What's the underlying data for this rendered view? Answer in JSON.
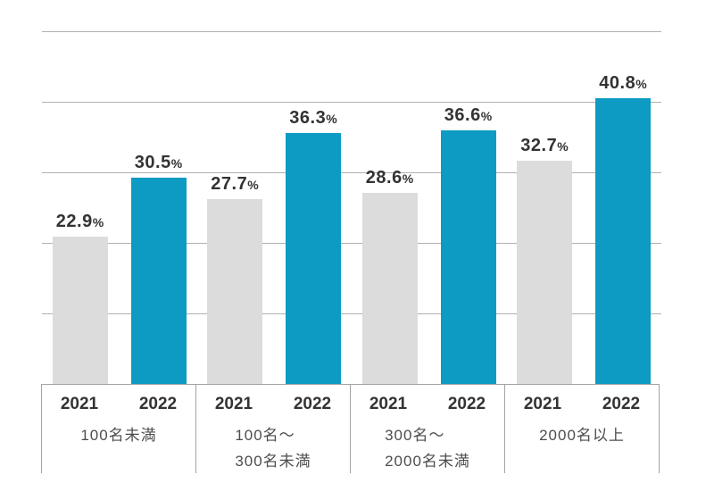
{
  "chart_data": {
    "type": "bar",
    "title": "",
    "categories": [
      {
        "lines": [
          "100名未満"
        ]
      },
      {
        "lines": [
          "100名～",
          "300名未満"
        ]
      },
      {
        "lines": [
          "300名～",
          "2000名未満"
        ]
      },
      {
        "lines": [
          "2000名以上"
        ]
      }
    ],
    "series": [
      {
        "name": "2021",
        "color": "#dcdcdc",
        "values": [
          22.9,
          27.7,
          28.6,
          32.7
        ]
      },
      {
        "name": "2022",
        "color": "#0d9bc3",
        "values": [
          30.5,
          36.3,
          36.6,
          40.8
        ]
      }
    ],
    "value_suffix": "%",
    "xlabel": "",
    "ylabel": "",
    "grid": true,
    "gridline_count": 5,
    "legend_position": "below-bars-as-year-labels",
    "colors": {
      "bar_2021": "#dcdcdc",
      "bar_2022": "#0d9bc3",
      "gridline": "#b0b0b0",
      "box_border": "#a3a3a3",
      "value_text": "#333333",
      "year_text": "#333333",
      "category_text": "#4d4d4d",
      "background": "#ffffff"
    }
  }
}
